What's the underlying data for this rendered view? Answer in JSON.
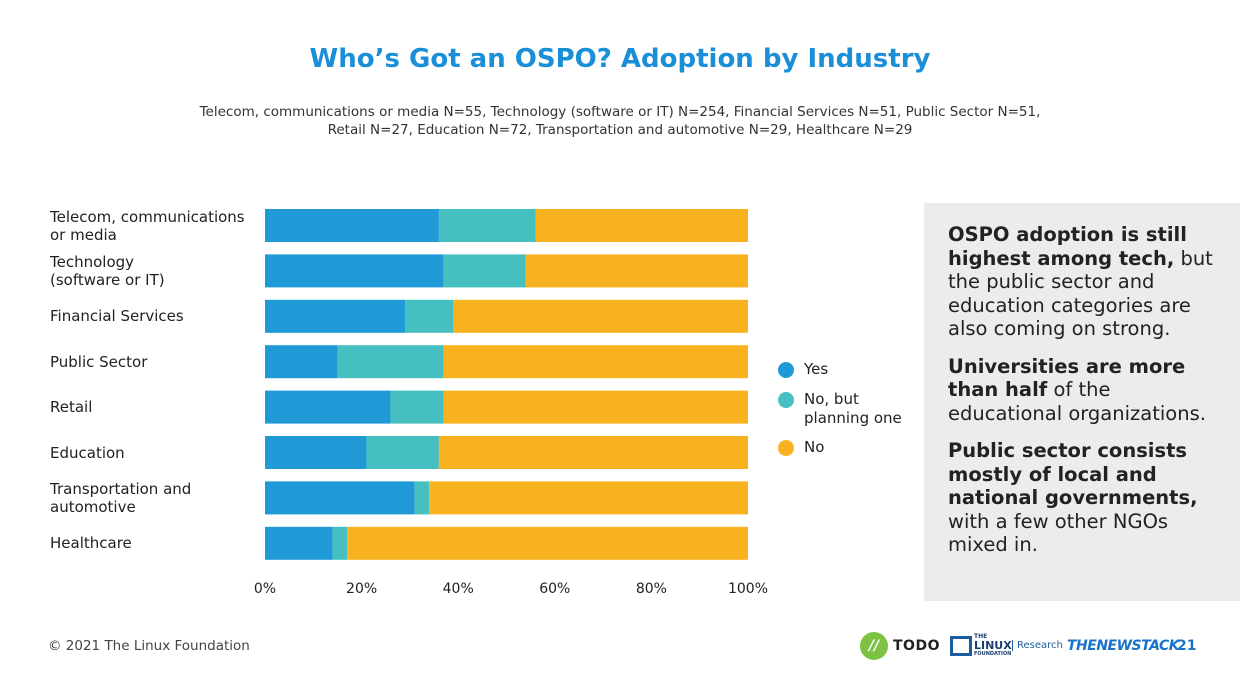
{
  "title": "Who’s Got an OSPO? Adoption by Industry",
  "subtitle_line1": "Telecom, communications or media N=55, Technology (software or IT) N=254, Financial Services N=51, Public Sector N=51,",
  "subtitle_line2": "Retail N=27, Education N=72, Transportation and automotive N=29, Healthcare N=29",
  "chart_data": {
    "type": "bar",
    "orientation": "horizontal",
    "stacked": true,
    "normalized": true,
    "categories": [
      [
        "Telecom, communications",
        "or media"
      ],
      [
        "Technology",
        "(software or IT)"
      ],
      [
        "Financial Services"
      ],
      [
        "Public Sector"
      ],
      [
        "Retail"
      ],
      [
        "Education"
      ],
      [
        "Transportation and",
        "automotive"
      ],
      [
        "Healthcare"
      ]
    ],
    "series": [
      {
        "name": "Yes",
        "color": "#1f9ad6",
        "values": [
          36,
          37,
          29,
          15,
          26,
          21,
          31,
          14
        ]
      },
      {
        "name": "No, but planning one",
        "color": "#45bfc0",
        "values": [
          20,
          17,
          10,
          22,
          11,
          15,
          3,
          3
        ]
      },
      {
        "name": "No",
        "color": "#f8b21f",
        "values": [
          44,
          46,
          61,
          63,
          63,
          64,
          66,
          83
        ]
      }
    ],
    "xlim": [
      0,
      100
    ],
    "xticks": [
      "0%",
      "20%",
      "40%",
      "60%",
      "80%",
      "100%"
    ],
    "legend_position": "right",
    "legend": [
      {
        "label": [
          "Yes"
        ],
        "color": "#1f9ad6"
      },
      {
        "label": [
          "No, but",
          "planning one"
        ],
        "color": "#45bfc0"
      },
      {
        "label": [
          "No"
        ],
        "color": "#f8b21f"
      }
    ]
  },
  "panel": {
    "p1_bold": "OSPO adoption is still highest among tech,",
    "p1_rest": " but the public sector and education categories are also coming on strong.",
    "p2_bold": "Universities are more than half",
    "p2_rest": " of the educational organizations.",
    "p3_bold": "Public sector consists mostly of local and national governments,",
    "p3_rest": " with a few other NGOs mixed in."
  },
  "footer": {
    "copyright": "© 2021 The Linux Foundation",
    "todo_mark": "//",
    "todo_label": "TODO",
    "lf_label_1": "THE",
    "lf_label_2": "LINUX",
    "lf_label_3": "FOUNDATION",
    "lf_research": "Research",
    "tns_label": "THENEWSTACK",
    "page_number": "21"
  }
}
